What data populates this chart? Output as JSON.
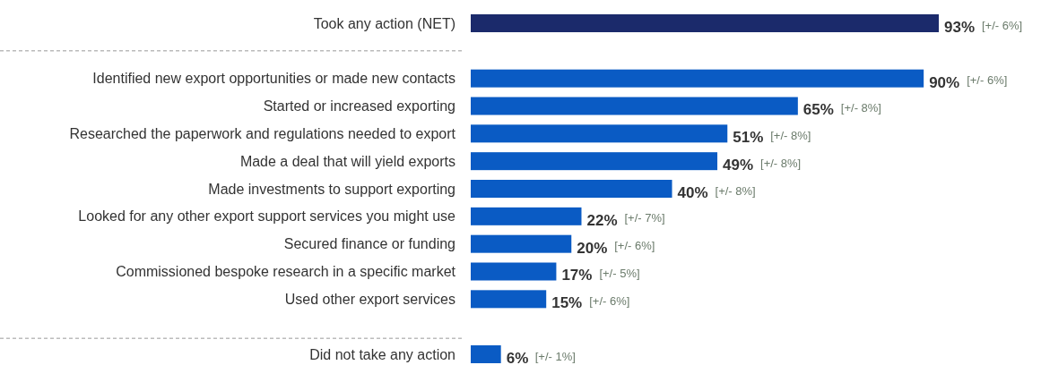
{
  "chart_data": {
    "type": "bar",
    "orientation": "horizontal",
    "categories": [
      "Took any action (NET)",
      null,
      "Identified new export opportunities or made new contacts",
      "Started or increased exporting",
      "Researched the paperwork and regulations needed to export",
      "Made a deal that will yield exports",
      "Made investments to support exporting",
      "Looked for any other export support services you might use",
      "Secured finance or funding",
      "Commissioned bespoke research in a specific market",
      "Used other export services",
      null,
      "Did not take any action"
    ],
    "values": [
      93,
      null,
      90,
      65,
      51,
      49,
      40,
      22,
      20,
      17,
      15,
      null,
      6
    ],
    "colors": [
      "#1b2a6b",
      null,
      "#0a5bc4",
      "#0a5bc4",
      "#0a5bc4",
      "#0a5bc4",
      "#0a5bc4",
      "#0a5bc4",
      "#0a5bc4",
      "#0a5bc4",
      "#0a5bc4",
      null,
      "#0a5bc4"
    ],
    "value_labels": [
      "93%",
      null,
      "90%",
      "65%",
      "51%",
      "49%",
      "40%",
      "22%",
      "20%",
      "17%",
      "15%",
      null,
      "6%"
    ],
    "annotations": [
      "[+/- 6%]",
      "[+/- 6%]",
      "[+/- 8%]",
      "[+/- 8%]",
      "[+/- 8%]",
      "[+/- 8%]",
      "[+/- 7%]",
      "[+/- 6%]",
      "[+/- 5%]",
      "[+/- 6%]",
      "[+/- 1%]"
    ]
  }
}
